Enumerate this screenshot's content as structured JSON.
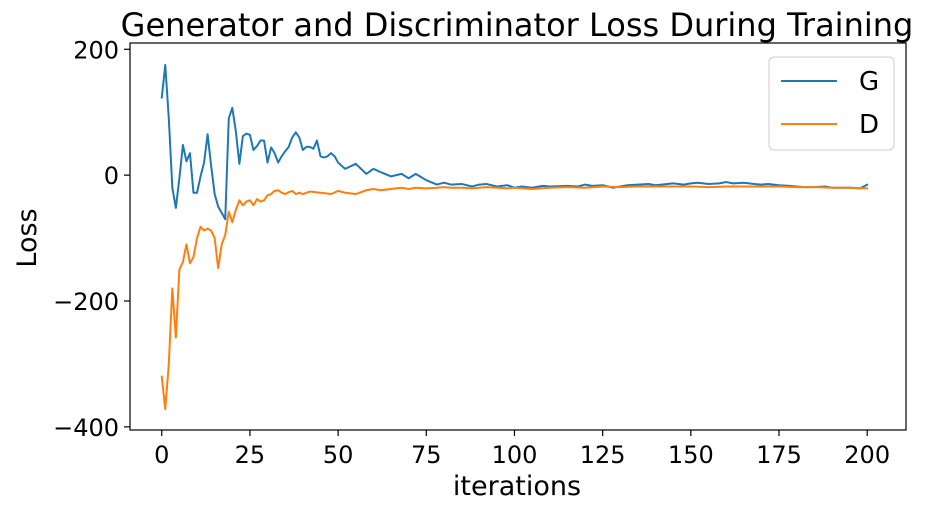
{
  "chart_data": {
    "type": "line",
    "title": "Generator and Discriminator Loss During Training",
    "xlabel": "iterations",
    "ylabel": "Loss",
    "xlim": [
      -9,
      211
    ],
    "ylim": [
      -405,
      210
    ],
    "xticks": [
      0,
      25,
      50,
      75,
      100,
      125,
      150,
      175,
      200
    ],
    "yticks": [
      200,
      0,
      -200,
      -400
    ],
    "ytick_labels": [
      "200",
      "0",
      "−200",
      "−400"
    ],
    "grid": false,
    "legend_position": "top-right",
    "series": [
      {
        "name": "G",
        "color": "#1f77b4",
        "x": [
          0,
          1,
          2,
          3,
          4,
          5,
          6,
          7,
          8,
          9,
          10,
          11,
          12,
          13,
          14,
          15,
          16,
          17,
          18,
          19,
          20,
          21,
          22,
          23,
          24,
          25,
          26,
          27,
          28,
          29,
          30,
          31,
          32,
          33,
          34,
          35,
          36,
          37,
          38,
          39,
          40,
          41,
          42,
          43,
          44,
          45,
          46,
          47,
          48,
          49,
          50,
          52,
          55,
          58,
          60,
          62,
          65,
          68,
          70,
          72,
          75,
          78,
          80,
          82,
          85,
          88,
          90,
          92,
          95,
          98,
          100,
          102,
          105,
          108,
          110,
          115,
          118,
          120,
          122,
          125,
          128,
          130,
          132,
          135,
          138,
          140,
          145,
          148,
          150,
          152,
          155,
          158,
          160,
          162,
          165,
          168,
          170,
          172,
          175,
          178,
          180,
          182,
          185,
          188,
          190,
          192,
          195,
          198,
          200
        ],
        "values": [
          123,
          175,
          90,
          -20,
          -52,
          -5,
          48,
          22,
          35,
          -28,
          -28,
          -2,
          20,
          65,
          15,
          -30,
          -50,
          -60,
          -70,
          90,
          107,
          70,
          18,
          62,
          66,
          64,
          40,
          46,
          55,
          55,
          20,
          44,
          35,
          20,
          30,
          38,
          45,
          60,
          68,
          60,
          40,
          45,
          45,
          42,
          55,
          30,
          28,
          30,
          35,
          30,
          20,
          10,
          18,
          2,
          10,
          5,
          -2,
          2,
          -5,
          2,
          -8,
          -15,
          -12,
          -15,
          -14,
          -18,
          -15,
          -14,
          -18,
          -16,
          -20,
          -18,
          -20,
          -17,
          -18,
          -17,
          -18,
          -15,
          -17,
          -16,
          -20,
          -18,
          -16,
          -15,
          -14,
          -16,
          -13,
          -15,
          -13,
          -12,
          -14,
          -13,
          -11,
          -13,
          -12,
          -14,
          -15,
          -14,
          -16,
          -17,
          -18,
          -19,
          -19,
          -18,
          -20,
          -20,
          -20,
          -21,
          -15
        ]
      },
      {
        "name": "D",
        "color": "#ff7f0e",
        "x": [
          0,
          1,
          2,
          3,
          4,
          5,
          6,
          7,
          8,
          9,
          10,
          11,
          12,
          13,
          14,
          15,
          16,
          17,
          18,
          19,
          20,
          21,
          22,
          23,
          24,
          25,
          26,
          27,
          28,
          29,
          30,
          31,
          32,
          33,
          34,
          35,
          36,
          37,
          38,
          39,
          40,
          42,
          45,
          48,
          50,
          52,
          55,
          58,
          60,
          62,
          65,
          68,
          70,
          72,
          75,
          78,
          80,
          82,
          85,
          88,
          90,
          92,
          95,
          98,
          100,
          105,
          110,
          115,
          120,
          125,
          130,
          135,
          140,
          145,
          150,
          155,
          160,
          165,
          170,
          175,
          180,
          185,
          190,
          195,
          200
        ],
        "values": [
          -320,
          -372,
          -300,
          -180,
          -258,
          -150,
          -138,
          -110,
          -140,
          -130,
          -100,
          -82,
          -88,
          -85,
          -88,
          -100,
          -148,
          -110,
          -95,
          -58,
          -75,
          -55,
          -40,
          -48,
          -42,
          -40,
          -48,
          -38,
          -42,
          -40,
          -32,
          -30,
          -25,
          -24,
          -28,
          -30,
          -27,
          -25,
          -30,
          -28,
          -30,
          -26,
          -28,
          -30,
          -25,
          -28,
          -30,
          -24,
          -22,
          -24,
          -22,
          -20,
          -22,
          -20,
          -21,
          -20,
          -19,
          -20,
          -20,
          -21,
          -20,
          -19,
          -20,
          -21,
          -20,
          -22,
          -20,
          -19,
          -20,
          -18,
          -19,
          -18,
          -18,
          -18,
          -18,
          -19,
          -18,
          -18,
          -18,
          -18,
          -19,
          -19,
          -20,
          -20,
          -21
        ]
      }
    ]
  }
}
